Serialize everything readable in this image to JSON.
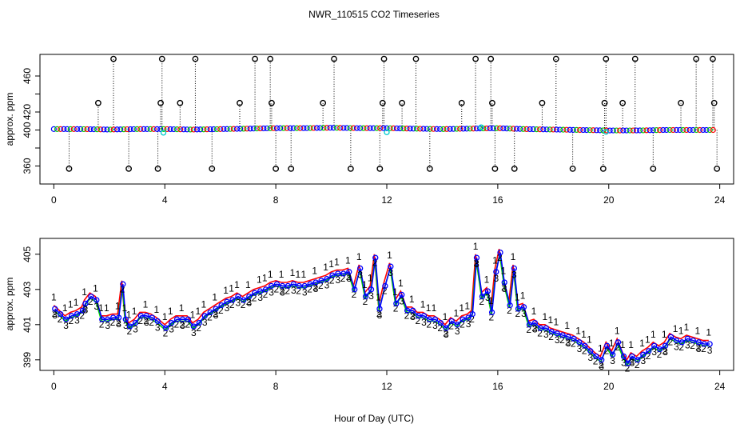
{
  "title": "NWR_110515  CO2 Timeseries",
  "colors": {
    "series1": "#ff0000",
    "series2": "#00cc00",
    "series3": "#0000ff",
    "flag": "#000000",
    "cyan": "#00cccc",
    "axis": "#000000"
  },
  "chart_data": [
    {
      "type": "scatter",
      "panel": "top",
      "title": "NWR_110515  CO2 Timeseries",
      "xlabel": "",
      "ylabel": "approx. ppm",
      "xlim": [
        -0.5,
        24.5
      ],
      "ylim": [
        340,
        484
      ],
      "xticks": [
        0,
        4,
        8,
        12,
        16,
        20,
        24
      ],
      "yticks": [
        360,
        380,
        400,
        420,
        440,
        460
      ],
      "ytick_labels_shown": [
        "360",
        "400",
        "420",
        "460"
      ],
      "baseline": [
        [
          0,
          401
        ],
        [
          1,
          401
        ],
        [
          2,
          400.5
        ],
        [
          3,
          401
        ],
        [
          4,
          401
        ],
        [
          5,
          400.5
        ],
        [
          6,
          401
        ],
        [
          7,
          401.5
        ],
        [
          8,
          402
        ],
        [
          9,
          402
        ],
        [
          10,
          402.5
        ],
        [
          11,
          402
        ],
        [
          12,
          402
        ],
        [
          13,
          401.5
        ],
        [
          14,
          401
        ],
        [
          15,
          401.5
        ],
        [
          16,
          402
        ],
        [
          17,
          401
        ],
        [
          18,
          400.5
        ],
        [
          19,
          400
        ],
        [
          20,
          399.5
        ],
        [
          21,
          399.5
        ],
        [
          22,
          400
        ],
        [
          23,
          400
        ],
        [
          23.8,
          400
        ]
      ],
      "flag_high_times": [
        2.15,
        3.9,
        5.1,
        7.25,
        7.8,
        10.1,
        11.9,
        13.05,
        15.2,
        15.75,
        18.1,
        19.9,
        20.95,
        23.15,
        23.75
      ],
      "flag_high_value": 479,
      "flag_mid_times": [
        1.6,
        3.85,
        4.55,
        6.7,
        7.85,
        9.7,
        11.85,
        12.55,
        14.7,
        15.8,
        17.6,
        19.85,
        20.5,
        22.6,
        23.8
      ],
      "flag_mid_value": 430,
      "flag_low_times": [
        0.55,
        2.7,
        3.75,
        5.7,
        8.0,
        8.55,
        10.7,
        11.75,
        13.55,
        15.9,
        16.6,
        18.7,
        19.8,
        21.6,
        23.9
      ],
      "flag_low_value": 357,
      "cyan_points": [
        [
          3.95,
          397
        ],
        [
          12.0,
          397.5
        ],
        [
          15.4,
          403
        ],
        [
          19.9,
          398
        ]
      ]
    },
    {
      "type": "line",
      "panel": "bottom",
      "xlabel": "Hour of Day (UTC)",
      "ylabel": "approx. ppm",
      "xlim": [
        -0.5,
        24.5
      ],
      "ylim": [
        398.4,
        405.9
      ],
      "xticks": [
        0,
        4,
        8,
        12,
        16,
        20,
        24
      ],
      "yticks": [
        399,
        401,
        403,
        405
      ],
      "series": [
        {
          "name": "1",
          "offset": 0.2
        },
        {
          "name": "2",
          "offset": -0.1
        },
        {
          "name": "3",
          "offset": 0.0
        }
      ],
      "points": [
        [
          0,
          401.9
        ],
        [
          0.2,
          401.6
        ],
        [
          0.4,
          401.3
        ],
        [
          0.6,
          401.5
        ],
        [
          0.8,
          401.6
        ],
        [
          1.0,
          401.8
        ],
        [
          1.1,
          402.2
        ],
        [
          1.3,
          402.6
        ],
        [
          1.5,
          402.4
        ],
        [
          1.7,
          401.3
        ],
        [
          1.9,
          401.3
        ],
        [
          2.1,
          401.4
        ],
        [
          2.3,
          401.4
        ],
        [
          2.45,
          403.3
        ],
        [
          2.55,
          401.3
        ],
        [
          2.7,
          400.9
        ],
        [
          2.9,
          401.1
        ],
        [
          3.1,
          401.5
        ],
        [
          3.3,
          401.5
        ],
        [
          3.5,
          401.4
        ],
        [
          3.7,
          401.2
        ],
        [
          4.0,
          400.8
        ],
        [
          4.2,
          401.1
        ],
        [
          4.4,
          401.3
        ],
        [
          4.6,
          401.3
        ],
        [
          4.8,
          401.3
        ],
        [
          5.0,
          400.9
        ],
        [
          5.2,
          401.1
        ],
        [
          5.4,
          401.5
        ],
        [
          5.6,
          401.7
        ],
        [
          5.8,
          401.9
        ],
        [
          6.0,
          402.1
        ],
        [
          6.2,
          402.3
        ],
        [
          6.4,
          402.4
        ],
        [
          6.6,
          402.6
        ],
        [
          6.8,
          402.4
        ],
        [
          7.0,
          402.6
        ],
        [
          7.2,
          402.8
        ],
        [
          7.4,
          402.9
        ],
        [
          7.6,
          403.0
        ],
        [
          7.8,
          403.2
        ],
        [
          8.0,
          403.3
        ],
        [
          8.2,
          403.2
        ],
        [
          8.4,
          403.2
        ],
        [
          8.6,
          403.3
        ],
        [
          8.8,
          403.2
        ],
        [
          9.0,
          403.2
        ],
        [
          9.2,
          403.3
        ],
        [
          9.4,
          403.4
        ],
        [
          9.6,
          403.5
        ],
        [
          9.8,
          403.6
        ],
        [
          10.0,
          403.8
        ],
        [
          10.2,
          403.9
        ],
        [
          10.4,
          403.9
        ],
        [
          10.6,
          404.0
        ],
        [
          10.8,
          403.0
        ],
        [
          11.0,
          404.2
        ],
        [
          11.2,
          402.6
        ],
        [
          11.4,
          403.0
        ],
        [
          11.55,
          404.8
        ],
        [
          11.7,
          401.9
        ],
        [
          11.9,
          403.2
        ],
        [
          12.1,
          404.3
        ],
        [
          12.3,
          402.2
        ],
        [
          12.5,
          402.7
        ],
        [
          12.7,
          401.8
        ],
        [
          12.9,
          401.8
        ],
        [
          13.1,
          401.5
        ],
        [
          13.3,
          401.5
        ],
        [
          13.5,
          401.3
        ],
        [
          13.7,
          401.3
        ],
        [
          13.9,
          401.1
        ],
        [
          14.1,
          400.8
        ],
        [
          14.3,
          401.2
        ],
        [
          14.5,
          401.0
        ],
        [
          14.7,
          401.3
        ],
        [
          14.9,
          401.4
        ],
        [
          15.05,
          401.6
        ],
        [
          15.2,
          404.8
        ],
        [
          15.4,
          402.6
        ],
        [
          15.6,
          402.9
        ],
        [
          15.75,
          401.7
        ],
        [
          15.9,
          404.0
        ],
        [
          16.05,
          405.1
        ],
        [
          16.2,
          403.4
        ],
        [
          16.4,
          402.1
        ],
        [
          16.55,
          404.2
        ],
        [
          16.7,
          401.9
        ],
        [
          16.9,
          402.0
        ],
        [
          17.1,
          401.0
        ],
        [
          17.3,
          401.1
        ],
        [
          17.5,
          400.8
        ],
        [
          17.7,
          400.8
        ],
        [
          17.9,
          400.6
        ],
        [
          18.1,
          400.5
        ],
        [
          18.3,
          400.4
        ],
        [
          18.5,
          400.3
        ],
        [
          18.7,
          400.2
        ],
        [
          18.9,
          400.0
        ],
        [
          19.1,
          399.8
        ],
        [
          19.3,
          399.5
        ],
        [
          19.5,
          399.2
        ],
        [
          19.7,
          399.0
        ],
        [
          19.9,
          399.8
        ],
        [
          20.1,
          399.3
        ],
        [
          20.3,
          400.0
        ],
        [
          20.5,
          399.2
        ],
        [
          20.65,
          398.8
        ],
        [
          20.8,
          399.2
        ],
        [
          21.0,
          399.0
        ],
        [
          21.2,
          399.3
        ],
        [
          21.4,
          399.5
        ],
        [
          21.6,
          399.8
        ],
        [
          21.8,
          399.6
        ],
        [
          22.0,
          399.8
        ],
        [
          22.2,
          400.3
        ],
        [
          22.4,
          400.1
        ],
        [
          22.6,
          400.0
        ],
        [
          22.8,
          400.2
        ],
        [
          23.0,
          400.1
        ],
        [
          23.2,
          400.0
        ],
        [
          23.4,
          399.9
        ],
        [
          23.6,
          399.9
        ]
      ]
    }
  ]
}
